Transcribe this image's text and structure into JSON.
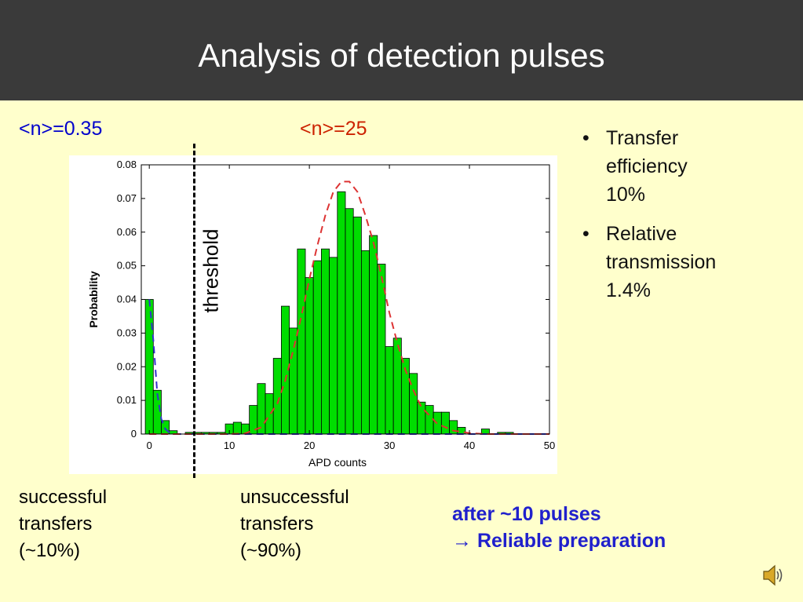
{
  "title": "Analysis of detection pulses",
  "labels": {
    "n_small": "<n>=0.35",
    "n_large": "<n>=25",
    "threshold": "threshold"
  },
  "bullets": [
    {
      "lines": [
        "Transfer",
        "efficiency",
        "10%"
      ]
    },
    {
      "lines": [
        "Relative",
        "transmission",
        "1.4%"
      ]
    }
  ],
  "captions": {
    "successful": [
      "successful",
      "transfers",
      "(~10%)"
    ],
    "unsuccessful": [
      "unsuccessful",
      "transfers",
      "(~90%)"
    ]
  },
  "conclusion": {
    "line1": "after ~10 pulses",
    "line2": "→ Reliable preparation"
  },
  "icons": {
    "bullet": "•",
    "speaker": "speaker-icon"
  },
  "colors": {
    "header_bg": "#3a3a3a",
    "slide_bg": "#ffffcc",
    "bars": "#00dd00",
    "fit_small": "#3333cc",
    "fit_large": "#dd3333"
  },
  "chart_data": {
    "type": "bar",
    "xlabel": "APD counts",
    "ylabel": "Probability",
    "xlim": [
      -1,
      50
    ],
    "ylim": [
      0,
      0.08
    ],
    "xticks": [
      0,
      10,
      20,
      30,
      40,
      50
    ],
    "yticks": [
      0,
      0.01,
      0.02,
      0.03,
      0.04,
      0.05,
      0.06,
      0.07,
      0.08
    ],
    "yticklabels": [
      "0",
      "0.01",
      "0.02",
      "0.03",
      "0.04",
      "0.05",
      "0.06",
      "0.07",
      "0.08"
    ],
    "x": [
      0,
      1,
      2,
      3,
      4,
      5,
      6,
      7,
      8,
      9,
      10,
      11,
      12,
      13,
      14,
      15,
      16,
      17,
      18,
      19,
      20,
      21,
      22,
      23,
      24,
      25,
      26,
      27,
      28,
      29,
      30,
      31,
      32,
      33,
      34,
      35,
      36,
      37,
      38,
      39,
      40,
      41,
      42,
      43,
      44,
      45,
      46,
      47,
      48,
      49
    ],
    "values": [
      0.04,
      0.013,
      0.004,
      0.001,
      0,
      0.0005,
      0.0005,
      0.0005,
      0.0005,
      0.0005,
      0.003,
      0.0035,
      0.003,
      0.0085,
      0.015,
      0.012,
      0.0225,
      0.038,
      0.0315,
      0.055,
      0.0465,
      0.0515,
      0.055,
      0.0525,
      0.072,
      0.067,
      0.0645,
      0.0545,
      0.059,
      0.0505,
      0.026,
      0.0285,
      0.0225,
      0.018,
      0.0095,
      0.0085,
      0.0065,
      0.0065,
      0.004,
      0.002,
      0,
      0,
      0.0015,
      0,
      0.0005,
      0.0005,
      0,
      0,
      0,
      0
    ],
    "fits": [
      {
        "color": "#3333cc",
        "style": "dashed",
        "x": [
          0,
          0.5,
          1,
          1.5,
          2,
          2.5,
          3,
          4,
          6,
          10,
          20,
          30,
          40,
          50
        ],
        "y": [
          0.04,
          0.028,
          0.012,
          0.0045,
          0.0015,
          0.0005,
          0,
          0,
          0,
          0,
          0,
          0,
          0,
          0
        ]
      },
      {
        "color": "#dd3333",
        "style": "dashed",
        "x": [
          0,
          4,
          6,
          8,
          10,
          12,
          14,
          16,
          17,
          18,
          19,
          20,
          21,
          22,
          23,
          24,
          25,
          26,
          27,
          28,
          29,
          30,
          31,
          32,
          33,
          34,
          36,
          38,
          40,
          42,
          44,
          46,
          48,
          50
        ],
        "y": [
          0,
          0,
          0,
          0,
          0,
          0.0002,
          0.002,
          0.009,
          0.016,
          0.025,
          0.035,
          0.046,
          0.056,
          0.065,
          0.072,
          0.075,
          0.075,
          0.072,
          0.065,
          0.057,
          0.047,
          0.036,
          0.027,
          0.019,
          0.013,
          0.008,
          0.003,
          0.001,
          0.0003,
          0,
          0,
          0,
          0,
          0
        ]
      }
    ]
  }
}
